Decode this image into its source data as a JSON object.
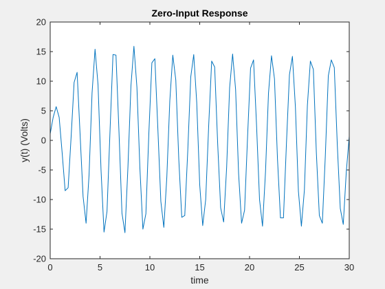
{
  "chart_data": {
    "type": "line",
    "title": "Zero-Input Response",
    "xlabel": "time",
    "ylabel": "y(t) (Volts)",
    "xlim": [
      0,
      30
    ],
    "ylim": [
      -20,
      20
    ],
    "xticks": [
      "0",
      "5",
      "10",
      "15",
      "20",
      "25",
      "30"
    ],
    "yticks": [
      "-20",
      "-15",
      "-10",
      "-5",
      "0",
      "5",
      "10",
      "15",
      "20"
    ],
    "grid": false,
    "series": [
      {
        "color": "#0072bd",
        "x": [
          0,
          0.3,
          0.6,
          0.9,
          1.2,
          1.5,
          1.8,
          2.1,
          2.4,
          2.7,
          3.0,
          3.3,
          3.6,
          3.9,
          4.2,
          4.5,
          4.8,
          5.1,
          5.4,
          5.7,
          6.0,
          6.3,
          6.6,
          6.9,
          7.2,
          7.5,
          7.8,
          8.1,
          8.4,
          8.7,
          9.0,
          9.3,
          9.6,
          9.9,
          10.2,
          10.5,
          10.8,
          11.1,
          11.4,
          11.7,
          12.0,
          12.3,
          12.6,
          12.9,
          13.2,
          13.5,
          13.8,
          14.1,
          14.4,
          14.7,
          15.0,
          15.3,
          15.6,
          15.9,
          16.2,
          16.5,
          16.8,
          17.1,
          17.4,
          17.7,
          18.0,
          18.3,
          18.6,
          18.9,
          19.2,
          19.5,
          19.8,
          20.1,
          20.4,
          20.7,
          21.0,
          21.3,
          21.6,
          21.9,
          22.2,
          22.5,
          22.8,
          23.1,
          23.4,
          23.7,
          24.0,
          24.3,
          24.6,
          24.9,
          25.2,
          25.5,
          25.8,
          26.1,
          26.4,
          26.7,
          27.0,
          27.3,
          27.6,
          27.9,
          28.2,
          28.5,
          28.8,
          29.1,
          29.4,
          29.7,
          30.0
        ],
        "values": [
          1.1,
          3.9,
          5.7,
          3.9,
          -2.1,
          -8.5,
          -8.0,
          0.6,
          9.8,
          11.5,
          1.0,
          -9.5,
          -14.0,
          -5.8,
          8.0,
          15.4,
          9.4,
          -5.0,
          -15.5,
          -12.0,
          1.5,
          14.5,
          14.4,
          1.5,
          -12.3,
          -15.6,
          -4.5,
          9.2,
          15.9,
          9.0,
          -4.7,
          -15.0,
          -12.4,
          1.3,
          13.1,
          13.8,
          2.0,
          -10.3,
          -14.7,
          -6.2,
          6.7,
          14.4,
          10.2,
          -3.2,
          -13.0,
          -12.7,
          -1.8,
          10.7,
          14.5,
          6.4,
          -7.5,
          -14.4,
          -10.0,
          2.5,
          13.4,
          12.4,
          -0.5,
          -11.4,
          -13.8,
          -4.6,
          8.9,
          14.6,
          8.6,
          -5.6,
          -14.0,
          -11.8,
          0.6,
          12.2,
          13.6,
          2.6,
          -10.0,
          -14.5,
          -5.3,
          8.0,
          14.3,
          10.4,
          -3.1,
          -13.1,
          -13.1,
          -0.5,
          11.1,
          14.2,
          5.6,
          -8.6,
          -14.5,
          -8.4,
          5.9,
          13.4,
          12.0,
          -2.1,
          -12.7,
          -14.0,
          -2.6,
          10.9,
          13.6,
          12.3,
          -0.7,
          -11.5,
          -14.2,
          -5.4,
          0.7
        ]
      }
    ]
  }
}
